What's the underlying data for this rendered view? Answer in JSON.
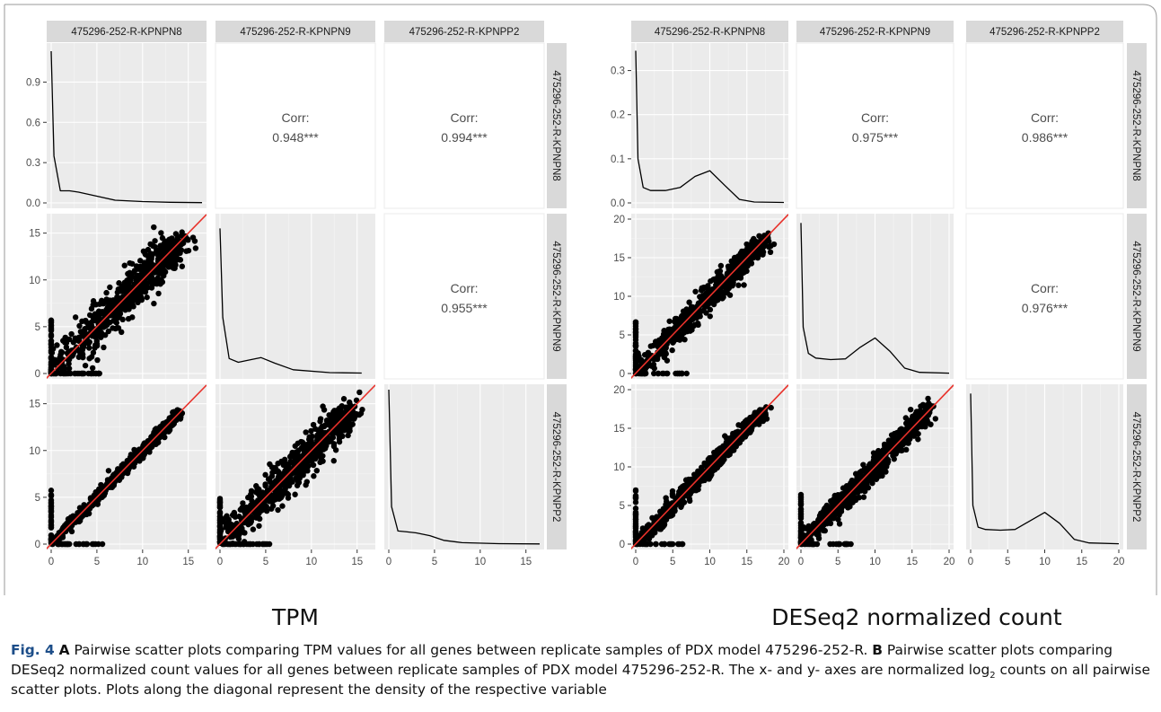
{
  "figure": {
    "panels": [
      {
        "key": "A",
        "title": "TPM",
        "samples": [
          "475296-252-R-KPNPN8",
          "475296-252-R-KPNPN9",
          "475296-252-R-KPNPP2"
        ],
        "x_ticks": [
          0,
          5,
          10,
          15
        ],
        "density_y_ticks": [
          "0.0",
          "0.3",
          "0.6",
          "0.9"
        ],
        "scatter_y_ticks": [
          0,
          5,
          10,
          15
        ],
        "correlations": [
          {
            "row": 0,
            "col": 1,
            "label": "Corr:",
            "value": "0.948***"
          },
          {
            "row": 0,
            "col": 2,
            "label": "Corr:",
            "value": "0.994***"
          },
          {
            "row": 1,
            "col": 2,
            "label": "Corr:",
            "value": "0.955***"
          }
        ]
      },
      {
        "key": "B",
        "title": "DESeq2 normalized count",
        "samples": [
          "475296-252-R-KPNPN8",
          "475296-252-R-KPNPN9",
          "475296-252-R-KPNPP2"
        ],
        "x_ticks": [
          0,
          5,
          10,
          15,
          20
        ],
        "density_y_ticks": [
          "0.0",
          "0.1",
          "0.2",
          "0.3"
        ],
        "scatter_y_ticks": [
          0,
          5,
          10,
          15,
          20
        ],
        "correlations": [
          {
            "row": 0,
            "col": 1,
            "label": "Corr:",
            "value": "0.975***"
          },
          {
            "row": 0,
            "col": 2,
            "label": "Corr:",
            "value": "0.986***"
          },
          {
            "row": 1,
            "col": 2,
            "label": "Corr:",
            "value": "0.976***"
          }
        ]
      }
    ],
    "caption": {
      "fig_label": "Fig. 4",
      "a_label": "A",
      "a_text": " Pairwise scatter plots comparing TPM values for all genes between replicate samples of PDX model 475296-252-R. ",
      "b_label": "B",
      "b_text": " Pairwise scatter plots comparing DESeq2 normalized count values for all genes between replicate samples of PDX model 475296-252-R. The x- and y- axes are normalized ",
      "log_base": "log",
      "log_sub": "2",
      "tail_text": " counts on all pairwise scatter plots. Plots along the diagonal represent the density of the respective variable"
    }
  },
  "chart_data": [
    {
      "type": "scatter",
      "title": "TPM",
      "variables": [
        "475296-252-R-KPNPN8",
        "475296-252-R-KPNPN9",
        "475296-252-R-KPNPP2"
      ],
      "layout": "3x3 pairs matrix: density on diagonal, scatter below, correlation above",
      "xlim": [
        0,
        16.5
      ],
      "scatter_ylim": [
        0,
        16.5
      ],
      "correlations": {
        "KPNPN8_vs_KPNPN9": 0.948,
        "KPNPN8_vs_KPNPP2": 0.994,
        "KPNPN9_vs_KPNPP2": 0.955
      },
      "density": [
        {
          "name": "475296-252-R-KPNPN8",
          "ylim": [
            0,
            1.15
          ],
          "x": [
            0,
            0.3,
            1,
            2,
            3,
            5,
            7,
            10,
            13,
            16.5
          ],
          "y": [
            1.13,
            0.35,
            0.09,
            0.09,
            0.08,
            0.05,
            0.02,
            0.01,
            0.005,
            0.002
          ]
        },
        {
          "name": "475296-252-R-KPNPN9",
          "x": [
            0,
            0.3,
            1,
            2,
            3,
            4.5,
            6,
            8,
            12,
            15.5
          ],
          "y": [
            15.5,
            6,
            1.6,
            1.2,
            1.4,
            1.7,
            1.1,
            0.4,
            0.1,
            0.05
          ]
        },
        {
          "name": "475296-252-R-KPNPP2",
          "x": [
            0,
            0.3,
            1,
            2,
            3,
            4.5,
            6,
            8,
            12,
            16.5
          ],
          "y": [
            16.5,
            4,
            1.4,
            1.3,
            1.2,
            0.9,
            0.4,
            0.15,
            0.05,
            0.02
          ]
        }
      ],
      "identity_line": true
    },
    {
      "type": "scatter",
      "title": "DESeq2 normalized count",
      "variables": [
        "475296-252-R-KPNPN8",
        "475296-252-R-KPNPN9",
        "475296-252-R-KPNPP2"
      ],
      "layout": "3x3 pairs matrix: density on diagonal, scatter below, correlation above",
      "xlim": [
        0,
        20
      ],
      "scatter_ylim": [
        0,
        20
      ],
      "correlations": {
        "KPNPN8_vs_KPNPN9": 0.975,
        "KPNPN8_vs_KPNPP2": 0.986,
        "KPNPN9_vs_KPNPP2": 0.976
      },
      "density": [
        {
          "name": "475296-252-R-KPNPN8",
          "ylim": [
            0,
            0.35
          ],
          "x": [
            0,
            0.3,
            1,
            2,
            4,
            6,
            8,
            10,
            12,
            14,
            16,
            20
          ],
          "y": [
            0.345,
            0.1,
            0.035,
            0.028,
            0.028,
            0.035,
            0.06,
            0.073,
            0.04,
            0.008,
            0.002,
            0.001
          ]
        },
        {
          "name": "475296-252-R-KPNPN9",
          "x": [
            0,
            0.3,
            1,
            2,
            4,
            6,
            8,
            10,
            12,
            14,
            16,
            20
          ],
          "y": [
            19.5,
            6,
            2.6,
            2,
            1.8,
            1.9,
            3.4,
            4.6,
            2.9,
            0.7,
            0.15,
            0.05
          ]
        },
        {
          "name": "475296-252-R-KPNPP2",
          "x": [
            0,
            0.3,
            1,
            2,
            4,
            6,
            8,
            10,
            12,
            14,
            16,
            20
          ],
          "y": [
            19.5,
            5,
            2.2,
            1.9,
            1.8,
            1.9,
            3,
            4.1,
            2.7,
            0.6,
            0.15,
            0.05
          ]
        }
      ],
      "identity_line": true
    }
  ]
}
